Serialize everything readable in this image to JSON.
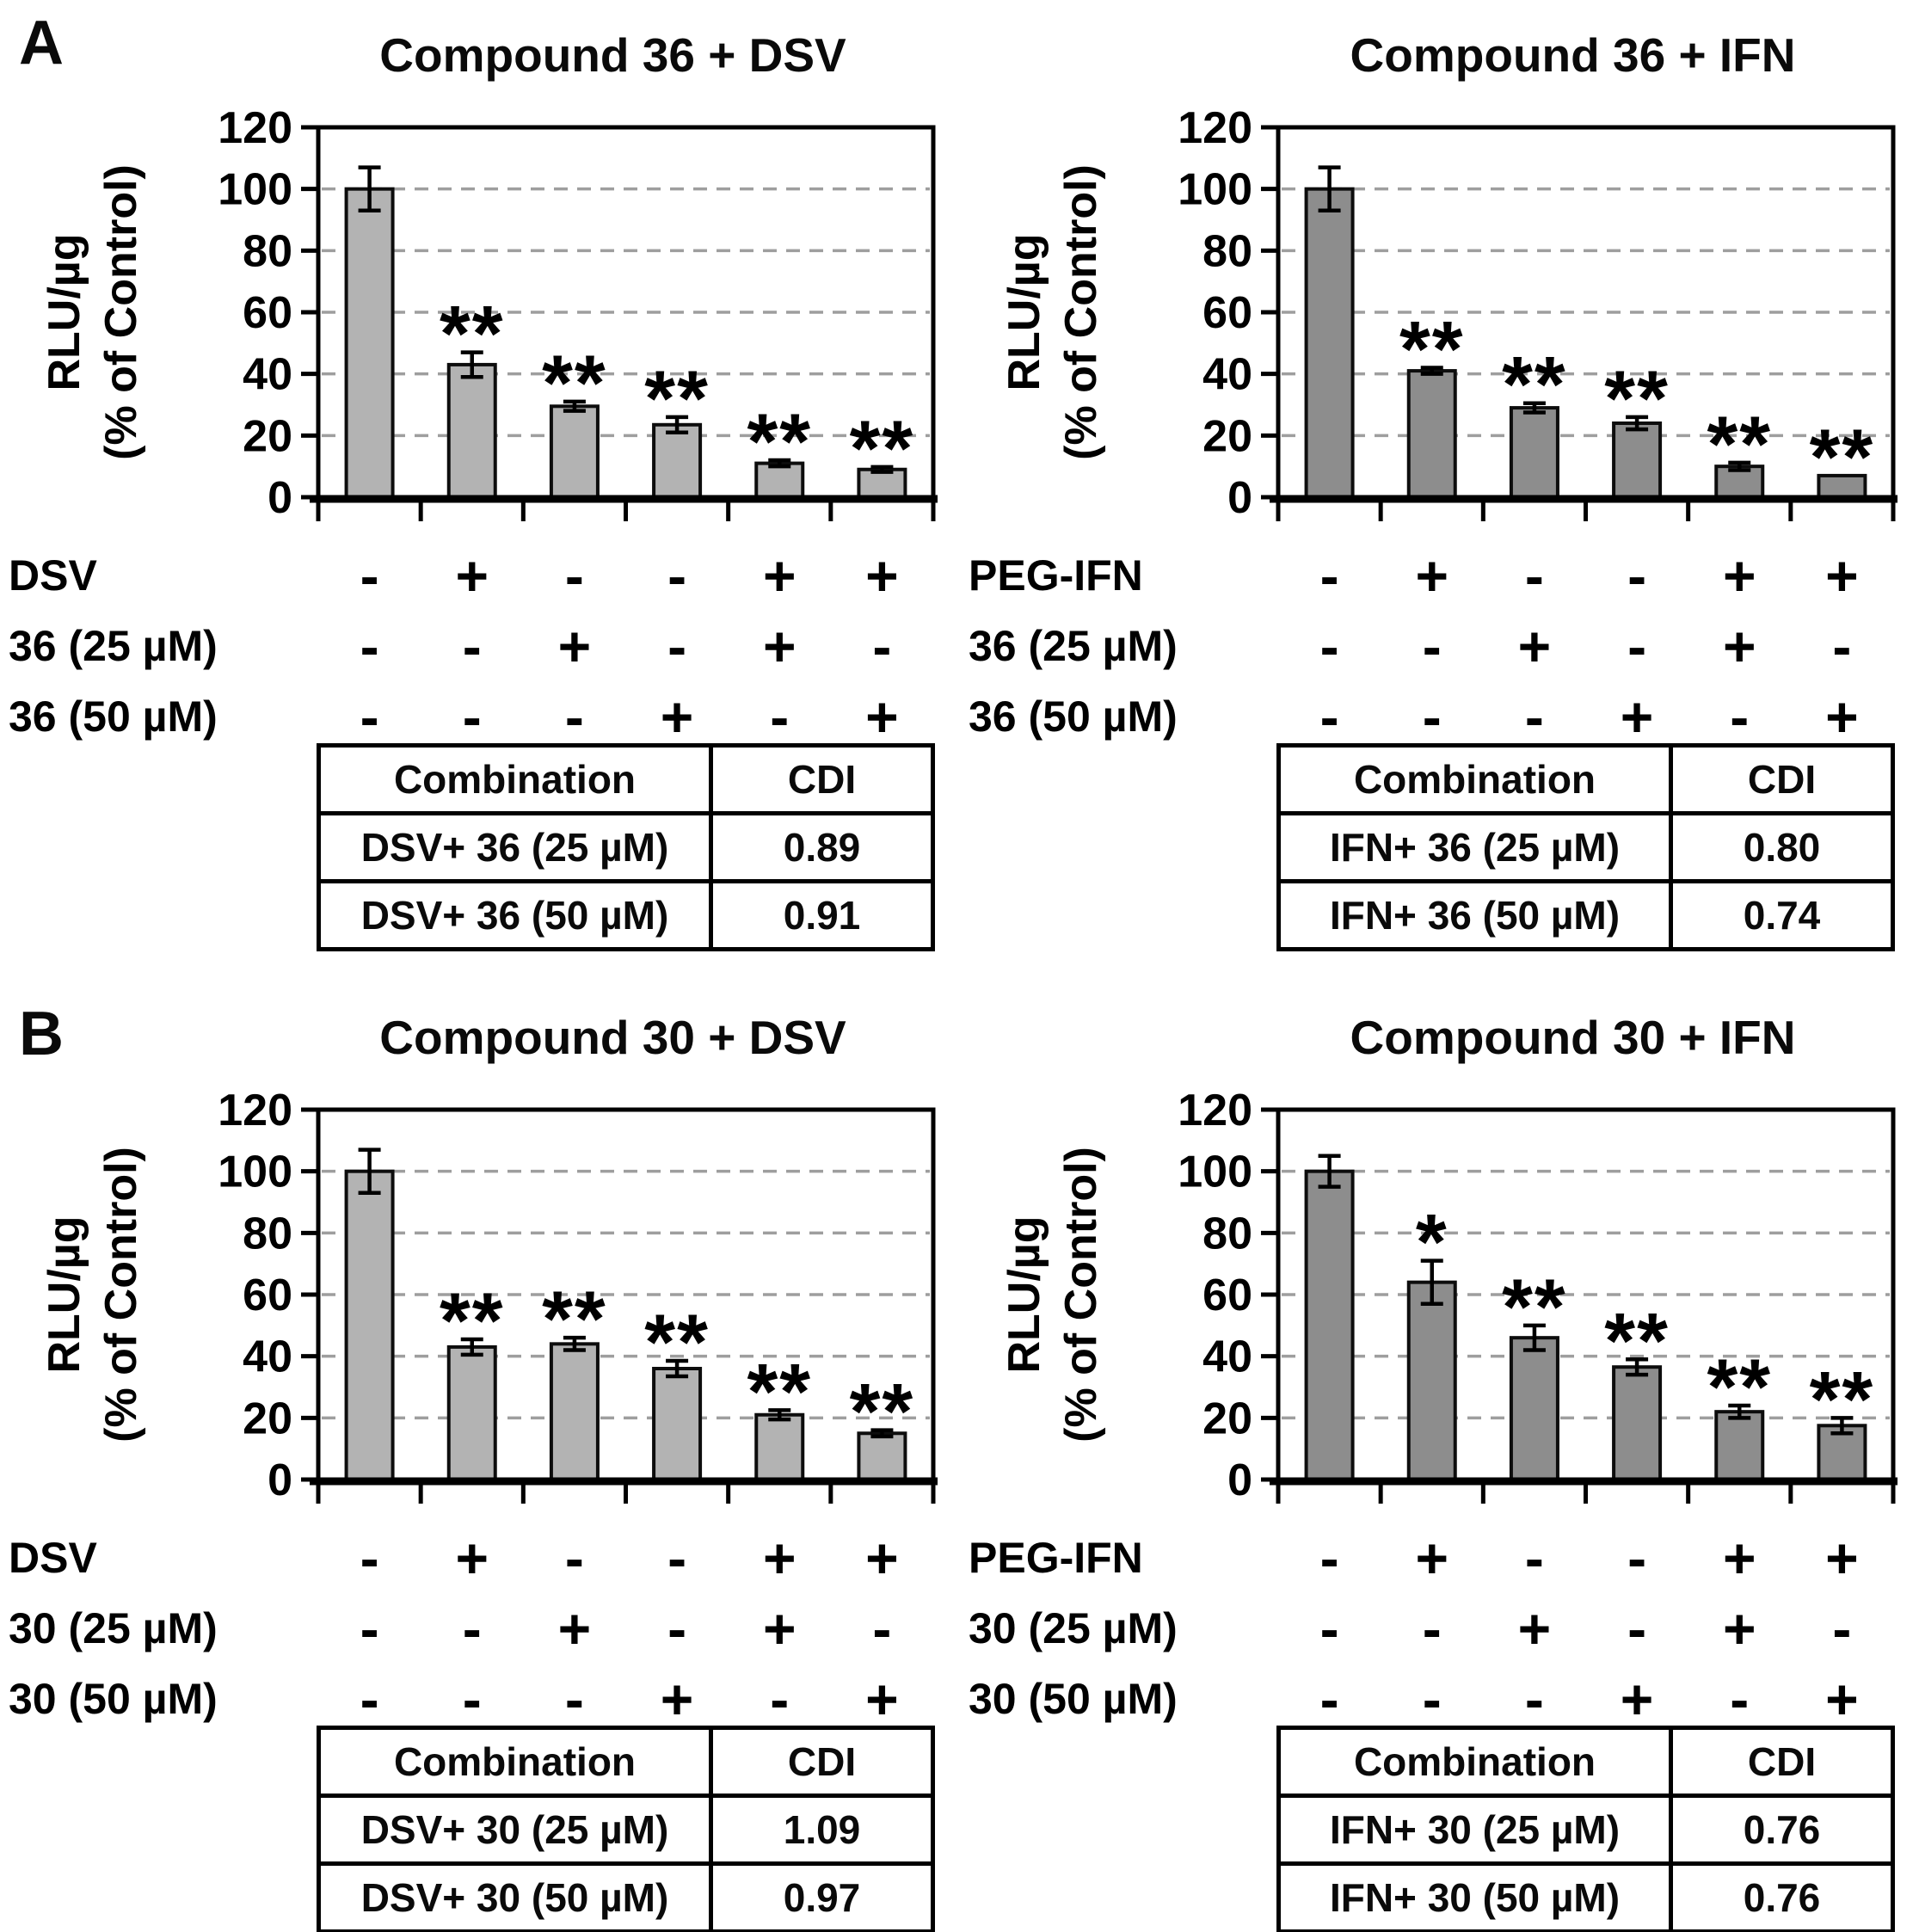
{
  "figure": {
    "panel_a_label": "A",
    "panel_b_label": "B"
  },
  "colors": {
    "bar_light": "#b3b3b3",
    "bar_dark": "#8d8d8d",
    "bar_border": "#0d0d0d",
    "axis": "#000000",
    "grid": "#9e9e9e"
  },
  "chart_data": [
    {
      "type": "bar",
      "panel": "A",
      "title": "Compound 36 + DSV",
      "ylabel_lines": [
        "RLU/µg",
        "(% of Control)"
      ],
      "ylim": [
        0,
        120
      ],
      "yticks": [
        0,
        20,
        40,
        60,
        80,
        100,
        120
      ],
      "grid_horizontal": true,
      "values": [
        100,
        43,
        29.5,
        23.5,
        11,
        9
      ],
      "errors": [
        7,
        4,
        1.5,
        2.5,
        1,
        0.8
      ],
      "significance": [
        "",
        "**",
        "**",
        "**",
        "**",
        "**"
      ],
      "bar_color": "#b3b3b3",
      "treatment_rows": [
        {
          "label": "DSV",
          "signs": [
            "-",
            "+",
            "-",
            "-",
            "+",
            "+"
          ]
        },
        {
          "label": "36 (25 µM)",
          "signs": [
            "-",
            "-",
            "+",
            "-",
            "+",
            "-"
          ]
        },
        {
          "label": "36 (50 µM)",
          "signs": [
            "-",
            "-",
            "-",
            "+",
            "-",
            "+"
          ]
        }
      ],
      "table": {
        "headers": [
          "Combination",
          "CDI"
        ],
        "rows": [
          [
            "DSV+ 36 (25 µM)",
            "0.89"
          ],
          [
            "DSV+ 36 (50 µM)",
            "0.91"
          ]
        ]
      }
    },
    {
      "type": "bar",
      "panel": "A",
      "title": "Compound 36 + IFN",
      "ylabel_lines": [
        "RLU/µg",
        "(% of Control)"
      ],
      "ylim": [
        0,
        120
      ],
      "yticks": [
        0,
        20,
        40,
        60,
        80,
        100,
        120
      ],
      "grid_horizontal": true,
      "values": [
        100,
        41,
        29,
        24,
        10,
        7
      ],
      "errors": [
        7,
        1,
        1.5,
        2,
        1.2,
        0
      ],
      "significance": [
        "",
        "**",
        "**",
        "**",
        "**",
        "**"
      ],
      "bar_color": "#8d8d8d",
      "treatment_rows": [
        {
          "label": "PEG-IFN",
          "signs": [
            "-",
            "+",
            "-",
            "-",
            "+",
            "+"
          ]
        },
        {
          "label": "36 (25 µM)",
          "signs": [
            "-",
            "-",
            "+",
            "-",
            "+",
            "-"
          ]
        },
        {
          "label": "36 (50 µM)",
          "signs": [
            "-",
            "-",
            "-",
            "+",
            "-",
            "+"
          ]
        }
      ],
      "table": {
        "headers": [
          "Combination",
          "CDI"
        ],
        "rows": [
          [
            "IFN+ 36 (25 µM)",
            "0.80"
          ],
          [
            "IFN+ 36 (50 µM)",
            "0.74"
          ]
        ]
      }
    },
    {
      "type": "bar",
      "panel": "B",
      "title": "Compound 30 + DSV",
      "ylabel_lines": [
        "RLU/µg",
        "(% of Control)"
      ],
      "ylim": [
        0,
        120
      ],
      "yticks": [
        0,
        20,
        40,
        60,
        80,
        100,
        120
      ],
      "grid_horizontal": true,
      "values": [
        100,
        43,
        44,
        36,
        21,
        15
      ],
      "errors": [
        7,
        2.5,
        2,
        2.5,
        1.5,
        1
      ],
      "significance": [
        "",
        "**",
        "**",
        "**",
        "**",
        "**"
      ],
      "bar_color": "#b3b3b3",
      "treatment_rows": [
        {
          "label": "DSV",
          "signs": [
            "-",
            "+",
            "-",
            "-",
            "+",
            "+"
          ]
        },
        {
          "label": "30 (25 µM)",
          "signs": [
            "-",
            "-",
            "+",
            "-",
            "+",
            "-"
          ]
        },
        {
          "label": "30 (50 µM)",
          "signs": [
            "-",
            "-",
            "-",
            "+",
            "-",
            "+"
          ]
        }
      ],
      "table": {
        "headers": [
          "Combination",
          "CDI"
        ],
        "rows": [
          [
            "DSV+ 30 (25 µM)",
            "1.09"
          ],
          [
            "DSV+ 30 (50 µM)",
            "0.97"
          ]
        ]
      }
    },
    {
      "type": "bar",
      "panel": "B",
      "title": "Compound 30 + IFN",
      "ylabel_lines": [
        "RLU/µg",
        "(% of Control)"
      ],
      "ylim": [
        0,
        120
      ],
      "yticks": [
        0,
        20,
        40,
        60,
        80,
        100,
        120
      ],
      "grid_horizontal": true,
      "values": [
        100,
        64,
        46,
        36.5,
        22,
        17.5
      ],
      "errors": [
        5,
        7,
        4,
        2.5,
        2,
        2.5
      ],
      "significance": [
        "",
        "*",
        "**",
        "**",
        "**",
        "**"
      ],
      "bar_color": "#8d8d8d",
      "treatment_rows": [
        {
          "label": "PEG-IFN",
          "signs": [
            "-",
            "+",
            "-",
            "-",
            "+",
            "+"
          ]
        },
        {
          "label": "30 (25 µM)",
          "signs": [
            "-",
            "-",
            "+",
            "-",
            "+",
            "-"
          ]
        },
        {
          "label": "30 (50 µM)",
          "signs": [
            "-",
            "-",
            "-",
            "+",
            "-",
            "+"
          ]
        }
      ],
      "table": {
        "headers": [
          "Combination",
          "CDI"
        ],
        "rows": [
          [
            "IFN+ 30 (25 µM)",
            "0.76"
          ],
          [
            "IFN+ 30 (50 µM)",
            "0.76"
          ]
        ]
      }
    }
  ]
}
